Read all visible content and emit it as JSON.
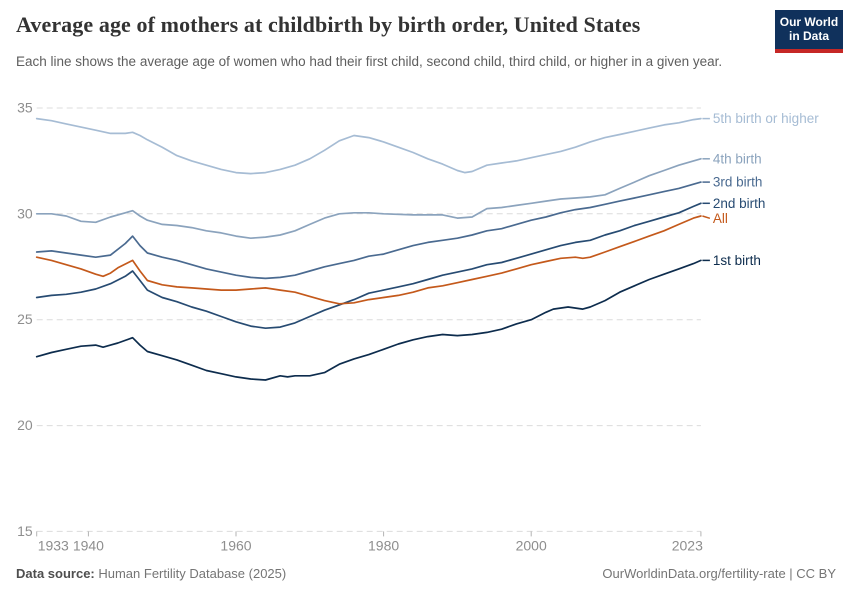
{
  "header": {
    "title": "Average age of mothers at childbirth by birth order, United States",
    "subtitle": "Each line shows the average age of women who had their first child, second child, third child, or higher in a given year.",
    "logo": {
      "line1": "Our World",
      "line2": "in Data",
      "bg_color": "#10315c",
      "bar_color": "#c62826"
    }
  },
  "footer": {
    "source_label": "Data source:",
    "source_value": " Human Fertility Database (2025)",
    "credit": "OurWorldinData.org/fertility-rate | CC BY"
  },
  "chart_data": {
    "type": "line",
    "title": "Average age of mothers at childbirth by birth order, United States",
    "xlabel": "",
    "ylabel": "",
    "xlim": [
      1933,
      2023
    ],
    "ylim": [
      15,
      35
    ],
    "x_ticks": [
      1933,
      1940,
      1960,
      1980,
      2000,
      2023
    ],
    "y_ticks": [
      15,
      20,
      25,
      30,
      35
    ],
    "grid": "horizontal-dashed",
    "legend_position": "right-end-labels",
    "colors": {
      "grid": "#dcdcdc",
      "tick": "#b3b3b3",
      "axis_text": "#8e8e8e"
    },
    "series": [
      {
        "name": "5th birth or higher",
        "color": "#a6bcd4",
        "points": [
          [
            1933,
            34.5
          ],
          [
            1935,
            34.4
          ],
          [
            1937,
            34.25
          ],
          [
            1939,
            34.1
          ],
          [
            1941,
            33.95
          ],
          [
            1943,
            33.8
          ],
          [
            1945,
            33.8
          ],
          [
            1946,
            33.85
          ],
          [
            1947,
            33.7
          ],
          [
            1948,
            33.5
          ],
          [
            1950,
            33.15
          ],
          [
            1952,
            32.75
          ],
          [
            1954,
            32.5
          ],
          [
            1956,
            32.3
          ],
          [
            1958,
            32.1
          ],
          [
            1960,
            31.95
          ],
          [
            1962,
            31.9
          ],
          [
            1964,
            31.95
          ],
          [
            1966,
            32.1
          ],
          [
            1968,
            32.3
          ],
          [
            1970,
            32.6
          ],
          [
            1972,
            33.0
          ],
          [
            1974,
            33.45
          ],
          [
            1976,
            33.7
          ],
          [
            1978,
            33.6
          ],
          [
            1980,
            33.4
          ],
          [
            1982,
            33.15
          ],
          [
            1984,
            32.9
          ],
          [
            1986,
            32.6
          ],
          [
            1988,
            32.35
          ],
          [
            1990,
            32.05
          ],
          [
            1991,
            31.95
          ],
          [
            1992,
            32.0
          ],
          [
            1994,
            32.3
          ],
          [
            1996,
            32.4
          ],
          [
            1998,
            32.5
          ],
          [
            2000,
            32.65
          ],
          [
            2002,
            32.8
          ],
          [
            2004,
            32.95
          ],
          [
            2006,
            33.15
          ],
          [
            2008,
            33.4
          ],
          [
            2010,
            33.6
          ],
          [
            2012,
            33.75
          ],
          [
            2014,
            33.9
          ],
          [
            2016,
            34.05
          ],
          [
            2018,
            34.2
          ],
          [
            2020,
            34.3
          ],
          [
            2022,
            34.45
          ],
          [
            2023,
            34.5
          ]
        ]
      },
      {
        "name": "4th birth",
        "color": "#8ba3bd",
        "points": [
          [
            1933,
            30.0
          ],
          [
            1935,
            30.0
          ],
          [
            1937,
            29.9
          ],
          [
            1939,
            29.65
          ],
          [
            1941,
            29.6
          ],
          [
            1943,
            29.85
          ],
          [
            1945,
            30.05
          ],
          [
            1946,
            30.15
          ],
          [
            1947,
            29.9
          ],
          [
            1948,
            29.7
          ],
          [
            1950,
            29.5
          ],
          [
            1952,
            29.45
          ],
          [
            1954,
            29.35
          ],
          [
            1956,
            29.2
          ],
          [
            1958,
            29.1
          ],
          [
            1960,
            28.95
          ],
          [
            1962,
            28.85
          ],
          [
            1964,
            28.9
          ],
          [
            1966,
            29.0
          ],
          [
            1968,
            29.2
          ],
          [
            1970,
            29.5
          ],
          [
            1972,
            29.8
          ],
          [
            1974,
            30.0
          ],
          [
            1976,
            30.05
          ],
          [
            1978,
            30.05
          ],
          [
            1980,
            30.0
          ],
          [
            1984,
            29.95
          ],
          [
            1988,
            29.95
          ],
          [
            1990,
            29.8
          ],
          [
            1992,
            29.85
          ],
          [
            1994,
            30.25
          ],
          [
            1996,
            30.3
          ],
          [
            1998,
            30.4
          ],
          [
            2000,
            30.5
          ],
          [
            2002,
            30.6
          ],
          [
            2004,
            30.7
          ],
          [
            2006,
            30.75
          ],
          [
            2008,
            30.8
          ],
          [
            2010,
            30.9
          ],
          [
            2012,
            31.2
          ],
          [
            2014,
            31.5
          ],
          [
            2016,
            31.8
          ],
          [
            2018,
            32.05
          ],
          [
            2020,
            32.3
          ],
          [
            2022,
            32.5
          ],
          [
            2023,
            32.6
          ]
        ]
      },
      {
        "name": "3rd birth",
        "color": "#4a6a90",
        "points": [
          [
            1933,
            28.2
          ],
          [
            1935,
            28.25
          ],
          [
            1937,
            28.15
          ],
          [
            1939,
            28.05
          ],
          [
            1941,
            27.95
          ],
          [
            1943,
            28.05
          ],
          [
            1945,
            28.6
          ],
          [
            1946,
            28.95
          ],
          [
            1947,
            28.5
          ],
          [
            1948,
            28.15
          ],
          [
            1950,
            27.95
          ],
          [
            1952,
            27.8
          ],
          [
            1954,
            27.6
          ],
          [
            1956,
            27.4
          ],
          [
            1958,
            27.25
          ],
          [
            1960,
            27.1
          ],
          [
            1962,
            27.0
          ],
          [
            1964,
            26.95
          ],
          [
            1966,
            27.0
          ],
          [
            1968,
            27.1
          ],
          [
            1970,
            27.3
          ],
          [
            1972,
            27.5
          ],
          [
            1974,
            27.65
          ],
          [
            1976,
            27.8
          ],
          [
            1978,
            28.0
          ],
          [
            1980,
            28.1
          ],
          [
            1982,
            28.3
          ],
          [
            1984,
            28.5
          ],
          [
            1986,
            28.65
          ],
          [
            1988,
            28.75
          ],
          [
            1990,
            28.85
          ],
          [
            1992,
            29.0
          ],
          [
            1994,
            29.2
          ],
          [
            1996,
            29.3
          ],
          [
            1998,
            29.5
          ],
          [
            2000,
            29.7
          ],
          [
            2002,
            29.85
          ],
          [
            2004,
            30.05
          ],
          [
            2006,
            30.2
          ],
          [
            2008,
            30.3
          ],
          [
            2010,
            30.45
          ],
          [
            2012,
            30.6
          ],
          [
            2014,
            30.75
          ],
          [
            2016,
            30.9
          ],
          [
            2018,
            31.05
          ],
          [
            2020,
            31.2
          ],
          [
            2022,
            31.4
          ],
          [
            2023,
            31.5
          ]
        ]
      },
      {
        "name": "2nd birth",
        "color": "#274b72",
        "points": [
          [
            1933,
            26.05
          ],
          [
            1935,
            26.15
          ],
          [
            1937,
            26.2
          ],
          [
            1939,
            26.3
          ],
          [
            1941,
            26.45
          ],
          [
            1943,
            26.7
          ],
          [
            1945,
            27.05
          ],
          [
            1946,
            27.3
          ],
          [
            1947,
            26.85
          ],
          [
            1948,
            26.4
          ],
          [
            1950,
            26.05
          ],
          [
            1952,
            25.85
          ],
          [
            1954,
            25.6
          ],
          [
            1956,
            25.4
          ],
          [
            1958,
            25.15
          ],
          [
            1960,
            24.9
          ],
          [
            1962,
            24.7
          ],
          [
            1964,
            24.6
          ],
          [
            1966,
            24.65
          ],
          [
            1968,
            24.85
          ],
          [
            1970,
            25.15
          ],
          [
            1972,
            25.45
          ],
          [
            1974,
            25.7
          ],
          [
            1976,
            25.95
          ],
          [
            1978,
            26.25
          ],
          [
            1980,
            26.4
          ],
          [
            1982,
            26.55
          ],
          [
            1984,
            26.7
          ],
          [
            1986,
            26.9
          ],
          [
            1988,
            27.1
          ],
          [
            1990,
            27.25
          ],
          [
            1992,
            27.4
          ],
          [
            1994,
            27.6
          ],
          [
            1996,
            27.7
          ],
          [
            1998,
            27.9
          ],
          [
            2000,
            28.1
          ],
          [
            2002,
            28.3
          ],
          [
            2004,
            28.5
          ],
          [
            2006,
            28.65
          ],
          [
            2008,
            28.75
          ],
          [
            2010,
            29.0
          ],
          [
            2012,
            29.2
          ],
          [
            2014,
            29.45
          ],
          [
            2016,
            29.65
          ],
          [
            2018,
            29.85
          ],
          [
            2020,
            30.05
          ],
          [
            2022,
            30.35
          ],
          [
            2023,
            30.5
          ]
        ]
      },
      {
        "name": "All",
        "color": "#c4591b",
        "points": [
          [
            1933,
            27.95
          ],
          [
            1935,
            27.8
          ],
          [
            1937,
            27.6
          ],
          [
            1939,
            27.4
          ],
          [
            1941,
            27.15
          ],
          [
            1942,
            27.05
          ],
          [
            1943,
            27.2
          ],
          [
            1944,
            27.45
          ],
          [
            1946,
            27.8
          ],
          [
            1947,
            27.3
          ],
          [
            1948,
            26.85
          ],
          [
            1950,
            26.65
          ],
          [
            1952,
            26.55
          ],
          [
            1954,
            26.5
          ],
          [
            1956,
            26.45
          ],
          [
            1958,
            26.4
          ],
          [
            1960,
            26.4
          ],
          [
            1962,
            26.45
          ],
          [
            1964,
            26.5
          ],
          [
            1966,
            26.4
          ],
          [
            1968,
            26.3
          ],
          [
            1970,
            26.1
          ],
          [
            1972,
            25.9
          ],
          [
            1974,
            25.75
          ],
          [
            1976,
            25.8
          ],
          [
            1978,
            25.95
          ],
          [
            1980,
            26.05
          ],
          [
            1982,
            26.15
          ],
          [
            1984,
            26.3
          ],
          [
            1986,
            26.5
          ],
          [
            1988,
            26.6
          ],
          [
            1990,
            26.75
          ],
          [
            1992,
            26.9
          ],
          [
            1994,
            27.05
          ],
          [
            1996,
            27.2
          ],
          [
            1998,
            27.4
          ],
          [
            2000,
            27.6
          ],
          [
            2002,
            27.75
          ],
          [
            2004,
            27.9
          ],
          [
            2006,
            27.95
          ],
          [
            2007,
            27.9
          ],
          [
            2008,
            27.95
          ],
          [
            2010,
            28.2
          ],
          [
            2012,
            28.45
          ],
          [
            2014,
            28.7
          ],
          [
            2016,
            28.95
          ],
          [
            2018,
            29.2
          ],
          [
            2020,
            29.5
          ],
          [
            2022,
            29.8
          ],
          [
            2023,
            29.9
          ]
        ]
      },
      {
        "name": "1st birth",
        "color": "#0d2c4d",
        "points": [
          [
            1933,
            23.25
          ],
          [
            1935,
            23.45
          ],
          [
            1937,
            23.6
          ],
          [
            1939,
            23.75
          ],
          [
            1941,
            23.8
          ],
          [
            1942,
            23.7
          ],
          [
            1943,
            23.8
          ],
          [
            1944,
            23.9
          ],
          [
            1946,
            24.15
          ],
          [
            1947,
            23.8
          ],
          [
            1948,
            23.5
          ],
          [
            1950,
            23.3
          ],
          [
            1952,
            23.1
          ],
          [
            1954,
            22.85
          ],
          [
            1956,
            22.6
          ],
          [
            1958,
            22.45
          ],
          [
            1960,
            22.3
          ],
          [
            1962,
            22.2
          ],
          [
            1964,
            22.15
          ],
          [
            1966,
            22.35
          ],
          [
            1967,
            22.3
          ],
          [
            1968,
            22.35
          ],
          [
            1970,
            22.35
          ],
          [
            1972,
            22.5
          ],
          [
            1974,
            22.9
          ],
          [
            1976,
            23.15
          ],
          [
            1978,
            23.35
          ],
          [
            1980,
            23.6
          ],
          [
            1982,
            23.85
          ],
          [
            1984,
            24.05
          ],
          [
            1986,
            24.2
          ],
          [
            1988,
            24.3
          ],
          [
            1990,
            24.25
          ],
          [
            1992,
            24.3
          ],
          [
            1994,
            24.4
          ],
          [
            1996,
            24.55
          ],
          [
            1998,
            24.8
          ],
          [
            2000,
            25.0
          ],
          [
            2002,
            25.35
          ],
          [
            2003,
            25.5
          ],
          [
            2005,
            25.6
          ],
          [
            2007,
            25.5
          ],
          [
            2008,
            25.6
          ],
          [
            2010,
            25.9
          ],
          [
            2012,
            26.3
          ],
          [
            2014,
            26.6
          ],
          [
            2016,
            26.9
          ],
          [
            2018,
            27.15
          ],
          [
            2020,
            27.4
          ],
          [
            2022,
            27.65
          ],
          [
            2023,
            27.8
          ]
        ]
      }
    ]
  }
}
